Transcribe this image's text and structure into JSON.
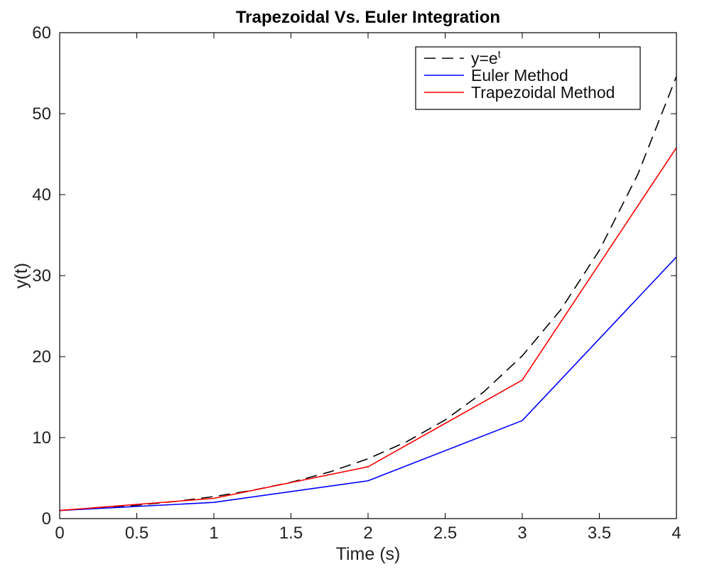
{
  "chart_data": {
    "type": "line",
    "title": "Trapezoidal Vs. Euler Integration",
    "xlabel": "Time (s)",
    "ylabel": "y(t)",
    "xlim": [
      0,
      4
    ],
    "ylim": [
      0,
      60
    ],
    "xticks": [
      "0",
      "0.5",
      "1",
      "1.5",
      "2",
      "2.5",
      "3",
      "3.5",
      "4"
    ],
    "yticks": [
      "0",
      "10",
      "20",
      "30",
      "40",
      "50",
      "60"
    ],
    "grid": false,
    "legend_position": "top-right",
    "series": [
      {
        "name": "y=e",
        "name_superscript": "t",
        "style": "dashed",
        "color": "#000000",
        "x": [
          0,
          0.25,
          0.5,
          0.75,
          1,
          1.25,
          1.5,
          1.75,
          2,
          2.25,
          2.5,
          2.75,
          3,
          3.25,
          3.5,
          3.75,
          4
        ],
        "y": [
          1,
          1.28,
          1.65,
          2.12,
          2.72,
          3.49,
          4.48,
          5.75,
          7.39,
          9.49,
          12.18,
          15.64,
          20.09,
          25.79,
          33.12,
          42.52,
          54.6
        ]
      },
      {
        "name": "Euler Method",
        "style": "solid",
        "color": "#0000ff",
        "x": [
          0,
          1,
          2,
          3,
          4
        ],
        "y": [
          1,
          2,
          4.67,
          12.1,
          32.3
        ]
      },
      {
        "name": "Trapezoidal Method",
        "style": "solid",
        "color": "#ff0000",
        "x": [
          0,
          1,
          2,
          3,
          4
        ],
        "y": [
          1,
          2.5,
          6.4,
          17.1,
          45.8
        ]
      }
    ]
  }
}
